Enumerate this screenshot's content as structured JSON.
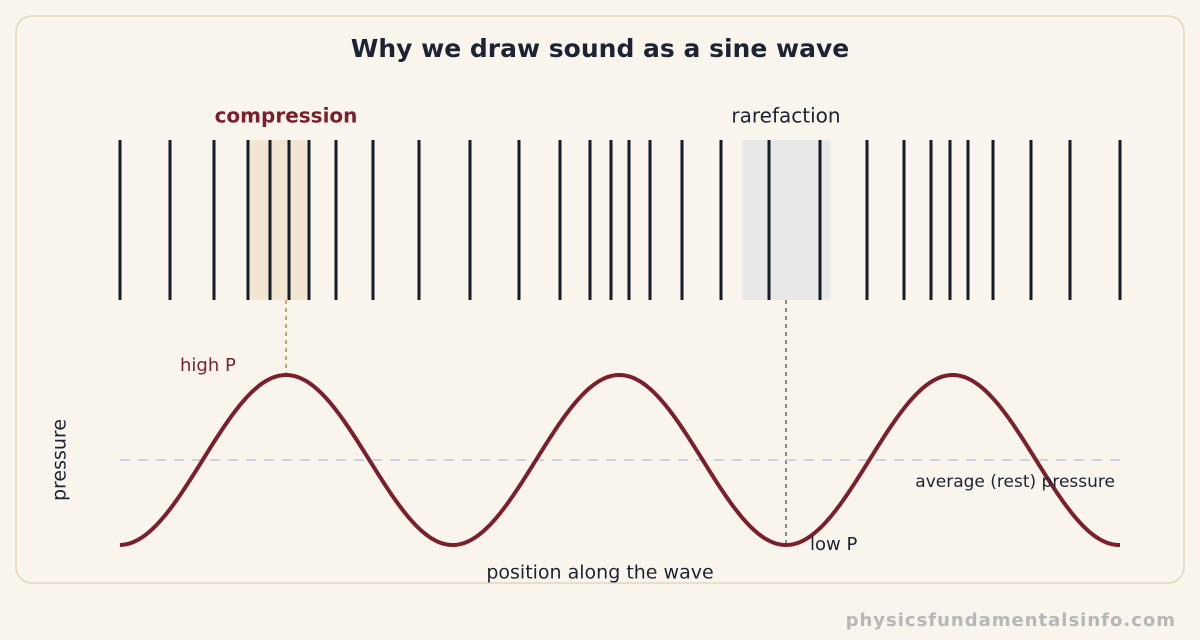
{
  "title": "Why we draw sound as a sine wave",
  "labels": {
    "compression": "compression",
    "rarefaction": "rarefaction",
    "high": "high P",
    "low": "low P",
    "rest": "average (rest) pressure",
    "y_axis": "pressure",
    "x_axis": "position along the wave"
  },
  "footer": "physicsfundamentalsinfo.com"
}
